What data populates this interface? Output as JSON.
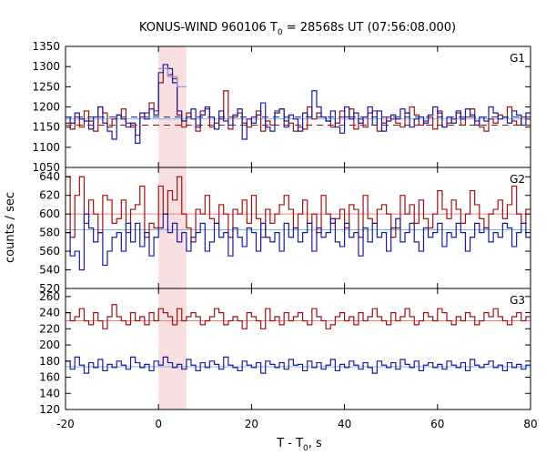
{
  "chart_data": {
    "type": "line",
    "title": "KONUS-WIND 960106 T₀ = 28568s UT (07:56:08.000)",
    "title_parts": {
      "prefix": "KONUS-WIND 960106 T",
      "subscript": "0",
      "suffix": " = 28568s UT (07:56:08.000)"
    },
    "xlabel": "T - T₀, s",
    "xlabel_parts": {
      "prefix": "T - T",
      "subscript": "0",
      "suffix": ", s"
    },
    "ylabel": "counts / sec",
    "xlim": [
      -20,
      80
    ],
    "xticks": [
      "-20",
      "0",
      "20",
      "40",
      "60",
      "80"
    ],
    "xticks_values": [
      -20,
      0,
      20,
      40,
      60,
      80
    ],
    "bin_width": 1.0,
    "highlight_interval": [
      0,
      6
    ],
    "highlight_color": "#f9e0e0",
    "grid": false,
    "colors": {
      "red_series": "#a01010",
      "blue_series": "#1a1aa0",
      "red_fit": "#f08080",
      "blue_fit": "#70b8e0",
      "g1_fine": "#9090f0"
    },
    "panels": [
      {
        "label": "G1",
        "ylim": [
          1050,
          1350
        ],
        "yticks": [
          "1050",
          "1100",
          "1150",
          "1200",
          "1250",
          "1300",
          "1350"
        ],
        "yticks_values": [
          1050,
          1100,
          1150,
          1200,
          1250,
          1300,
          1350
        ],
        "fits": [
          {
            "y": 1170,
            "color": "#70b8e0",
            "dashed": false
          },
          {
            "y": 1155,
            "color": "#a01010",
            "dashed": true
          },
          {
            "y": 1175,
            "color": "#1a1aa0",
            "dashed": true
          }
        ],
        "fine_series": {
          "color": "#9090f0",
          "x0": 0,
          "bin_width": 2,
          "values": [
            1295,
            1275,
            1250
          ]
        },
        "series": [
          {
            "color": "#a01010",
            "x0": -20,
            "values": [
              1160,
              1145,
              1175,
              1150,
              1190,
              1165,
              1140,
              1200,
              1185,
              1150,
              1170,
              1180,
              1195,
              1160,
              1150,
              1130,
              1175,
              1185,
              1210,
              1190,
              1260,
              1295,
              1280,
              1270,
              1180,
              1150,
              1185,
              1170,
              1140,
              1190,
              1195,
              1150,
              1160,
              1170,
              1240,
              1145,
              1175,
              1185,
              1160,
              1150,
              1175,
              1190,
              1140,
              1165,
              1155,
              1190,
              1195,
              1165,
              1160,
              1140,
              1150,
              1145,
              1200,
              1170,
              1185,
              1175,
              1165,
              1150,
              1160,
              1190,
              1175,
              1195,
              1145,
              1170,
              1150,
              1185,
              1190,
              1140,
              1160,
              1175,
              1170,
              1160,
              1150,
              1185,
              1200,
              1180,
              1155,
              1165,
              1175,
              1145,
              1190,
              1150,
              1160,
              1170,
              1185,
              1155,
              1175,
              1195,
              1165,
              1150,
              1140,
              1170,
              1160,
              1180,
              1175,
              1200,
              1165,
              1155,
              1175,
              1170
            ]
          },
          {
            "color": "#1a1aa0",
            "x0": -20,
            "values": [
              1175,
              1160,
              1185,
              1170,
              1165,
              1145,
              1175,
              1200,
              1160,
              1140,
              1120,
              1180,
              1170,
              1150,
              1160,
              1110,
              1185,
              1170,
              1195,
              1180,
              1285,
              1305,
              1295,
              1260,
              1190,
              1165,
              1175,
              1195,
              1150,
              1180,
              1200,
              1175,
              1145,
              1190,
              1165,
              1155,
              1180,
              1195,
              1120,
              1170,
              1160,
              1180,
              1210,
              1150,
              1140,
              1185,
              1195,
              1150,
              1180,
              1170,
              1140,
              1185,
              1175,
              1240,
              1200,
              1175,
              1165,
              1190,
              1150,
              1135,
              1200,
              1170,
              1185,
              1160,
              1175,
              1200,
              1155,
              1190,
              1140,
              1165,
              1180,
              1170,
              1195,
              1185,
              1150,
              1170,
              1175,
              1160,
              1180,
              1200,
              1185,
              1150,
              1175,
              1160,
              1190,
              1170,
              1195,
              1180,
              1155,
              1175,
              1165,
              1200,
              1185,
              1170,
              1175,
              1160,
              1190,
              1180,
              1155,
              1185
            ]
          }
        ]
      },
      {
        "label": "G2",
        "ylim": [
          520,
          650
        ],
        "yticks": [
          "520",
          "540",
          "560",
          "580",
          "600",
          "620",
          "640"
        ],
        "yticks_values": [
          520,
          540,
          560,
          580,
          600,
          620,
          640
        ],
        "fits": [
          {
            "y": 600,
            "color": "#f08080",
            "dashed": false
          },
          {
            "y": 583,
            "color": "#70b8e0",
            "dashed": false
          }
        ],
        "series": [
          {
            "color": "#a01010",
            "x0": -20,
            "values": [
              640,
              575,
              620,
              640,
              590,
              615,
              600,
              580,
              620,
              615,
              590,
              595,
              615,
              580,
              605,
              610,
              630,
              575,
              590,
              585,
              630,
              600,
              625,
              615,
              640,
              600,
              585,
              570,
              605,
              600,
              620,
              595,
              590,
              610,
              600,
              575,
              605,
              600,
              615,
              590,
              620,
              595,
              575,
              605,
              590,
              600,
              610,
              620,
              605,
              585,
              600,
              615,
              590,
              600,
              580,
              620,
              600,
              590,
              595,
              605,
              585,
              610,
              605,
              575,
              620,
              595,
              590,
              605,
              610,
              600,
              575,
              585,
              620,
              600,
              610,
              590,
              615,
              595,
              585,
              600,
              625,
              605,
              595,
              615,
              605,
              590,
              600,
              625,
              610,
              595,
              585,
              600,
              605,
              615,
              595,
              610,
              630,
              600,
              590,
              605
            ]
          },
          {
            "color": "#1a1aa0",
            "x0": -20,
            "values": [
              580,
              555,
              560,
              540,
              600,
              585,
              570,
              580,
              545,
              560,
              575,
              580,
              560,
              590,
              570,
              590,
              565,
              580,
              555,
              575,
              585,
              600,
              580,
              590,
              570,
              580,
              560,
              575,
              580,
              590,
              560,
              570,
              590,
              575,
              580,
              555,
              585,
              575,
              565,
              585,
              580,
              560,
              590,
              575,
              570,
              580,
              560,
              590,
              575,
              585,
              570,
              580,
              590,
              560,
              585,
              575,
              580,
              595,
              570,
              565,
              590,
              575,
              580,
              555,
              585,
              570,
              590,
              575,
              580,
              560,
              585,
              595,
              570,
              580,
              590,
              570,
              560,
              585,
              575,
              580,
              590,
              565,
              580,
              575,
              590,
              580,
              560,
              575,
              590,
              580,
              585,
              570,
              580,
              575,
              590,
              585,
              565,
              580,
              590,
              575
            ]
          }
        ]
      },
      {
        "label": "G3",
        "ylim": [
          120,
          270
        ],
        "yticks": [
          "120",
          "140",
          "160",
          "180",
          "200",
          "220",
          "240",
          "260"
        ],
        "yticks_values": [
          120,
          140,
          160,
          180,
          200,
          220,
          240,
          260
        ],
        "fits": [
          {
            "y": 230,
            "color": "#f08080",
            "dashed": false
          },
          {
            "y": 173,
            "color": "#70b8e0",
            "dashed": false
          }
        ],
        "series": [
          {
            "color": "#a01010",
            "x0": -20,
            "values": [
              240,
              230,
              235,
              245,
              230,
              225,
              240,
              230,
              220,
              235,
              250,
              235,
              230,
              225,
              240,
              230,
              235,
              225,
              240,
              230,
              245,
              240,
              235,
              225,
              245,
              230,
              235,
              240,
              235,
              225,
              230,
              235,
              245,
              240,
              225,
              230,
              235,
              230,
              220,
              240,
              235,
              230,
              220,
              245,
              230,
              235,
              225,
              240,
              230,
              235,
              240,
              230,
              225,
              245,
              235,
              230,
              220,
              225,
              235,
              240,
              230,
              235,
              225,
              240,
              230,
              235,
              245,
              235,
              230,
              225,
              240,
              230,
              235,
              245,
              235,
              225,
              230,
              240,
              235,
              230,
              245,
              240,
              230,
              225,
              235,
              230,
              240,
              235,
              225,
              230,
              240,
              235,
              245,
              235,
              230,
              225,
              235,
              240,
              230,
              235
            ]
          },
          {
            "color": "#1a1aa0",
            "x0": -20,
            "values": [
              180,
              170,
              185,
              175,
              165,
              178,
              172,
              182,
              168,
              176,
              172,
              180,
              175,
              170,
              185,
              178,
              172,
              176,
              168,
              180,
              175,
              185,
              178,
              172,
              176,
              170,
              182,
              175,
              168,
              178,
              172,
              180,
              176,
              170,
              185,
              175,
              172,
              168,
              180,
              175,
              172,
              178,
              165,
              180,
              176,
              172,
              178,
              170,
              182,
              175,
              176,
              168,
              180,
              172,
              178,
              170,
              175,
              182,
              168,
              176,
              172,
              180,
              175,
              170,
              178,
              172,
              165,
              180,
              175,
              172,
              178,
              170,
              182,
              176,
              172,
              180,
              168,
              175,
              178,
              172,
              176,
              170,
              180,
              175,
              172,
              178,
              168,
              182,
              175,
              172,
              176,
              180,
              172,
              175,
              168,
              178,
              172,
              176,
              170,
              175
            ]
          }
        ]
      }
    ]
  }
}
